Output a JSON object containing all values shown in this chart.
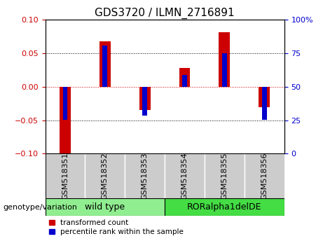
{
  "title": "GDS3720 / ILMN_2716891",
  "samples": [
    "GSM518351",
    "GSM518352",
    "GSM518353",
    "GSM518354",
    "GSM518355",
    "GSM518356"
  ],
  "red_values": [
    -0.101,
    0.068,
    -0.035,
    0.028,
    0.082,
    -0.03
  ],
  "blue_values_transformed": [
    -0.049,
    0.062,
    -0.043,
    0.018,
    0.05,
    -0.049
  ],
  "ylim": [
    -0.1,
    0.1
  ],
  "yticks_left": [
    -0.1,
    -0.05,
    0,
    0.05,
    0.1
  ],
  "yticks_right": [
    0,
    25,
    50,
    75,
    100
  ],
  "groups": [
    {
      "label": "wild type",
      "indices": [
        0,
        1,
        2
      ],
      "color": "#90EE90"
    },
    {
      "label": "RORalpha1delDE",
      "indices": [
        3,
        4,
        5
      ],
      "color": "#44DD44"
    }
  ],
  "group_label": "genotype/variation",
  "legend_red": "transformed count",
  "legend_blue": "percentile rank within the sample",
  "red_color": "#CC0000",
  "blue_color": "#0000CC",
  "zero_line_color": "#CC0000",
  "tick_label_color_left": "#CC0000",
  "tick_label_color_right": "#0000CC",
  "title_fontsize": 11,
  "tick_fontsize": 8,
  "label_fontsize": 9,
  "xtick_bg_color": "#CCCCCC"
}
